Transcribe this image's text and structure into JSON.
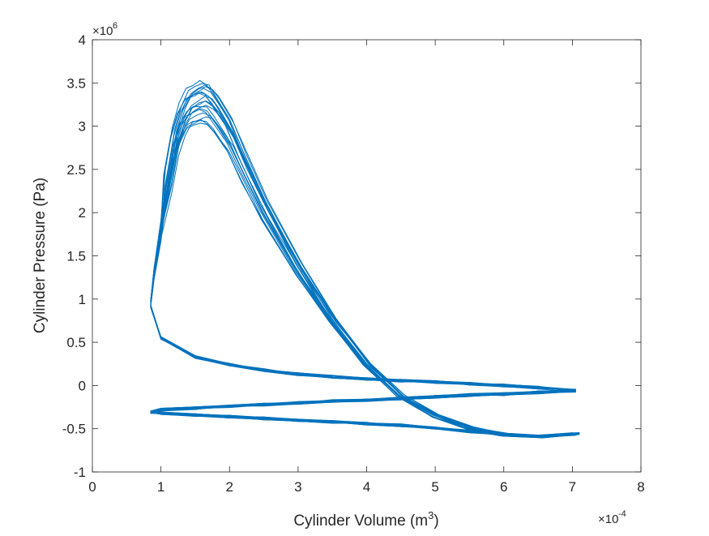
{
  "chart_data": {
    "type": "line",
    "title": "",
    "xlabel": "Cylinder Volume (m",
    "xlabel_superscript": "3",
    "xlabel_suffix": ")",
    "ylabel": "Cylinder Pressure (Pa)",
    "x_multiplier": {
      "base": "×10",
      "exponent": "-4"
    },
    "y_multiplier": {
      "base": "×10",
      "exponent": "6"
    },
    "xlim": [
      0,
      8
    ],
    "ylim": [
      -1,
      4
    ],
    "xticks": [
      0,
      1,
      2,
      3,
      4,
      5,
      6,
      7,
      8
    ],
    "xtick_labels": [
      "0",
      "1",
      "2",
      "3",
      "4",
      "5",
      "6",
      "7",
      "8"
    ],
    "yticks": [
      -1,
      -0.5,
      0,
      0.5,
      1,
      1.5,
      2,
      2.5,
      3,
      3.5,
      4
    ],
    "ytick_labels": [
      "-1",
      "-0.5",
      "0",
      "0.5",
      "1",
      "1.5",
      "2",
      "2.5",
      "3",
      "3.5",
      "4"
    ],
    "grid": false,
    "box": true,
    "series_color": "#0072BD",
    "cycle_count": 20,
    "series": [
      {
        "segment": "compression",
        "x": [
          0.85,
          1.0,
          1.5,
          2.0,
          2.5,
          3.0,
          3.5,
          4.0,
          4.5,
          5.0,
          5.5,
          6.0,
          6.5,
          7.05
        ],
        "y": [
          0.92,
          0.55,
          0.33,
          0.24,
          0.18,
          0.13,
          0.1,
          0.075,
          0.055,
          0.04,
          0.02,
          0.0,
          -0.025,
          -0.06
        ]
      },
      {
        "segment": "combustion-expansion",
        "x": [
          0.85,
          0.9,
          1.0,
          1.1,
          1.2,
          1.3,
          1.4,
          1.5,
          1.6,
          1.7,
          1.8,
          2.0,
          2.2,
          2.5,
          3.0,
          3.5,
          4.0,
          4.5,
          5.0,
          5.5,
          6.0,
          6.5,
          7.05
        ],
        "y": [
          0.95,
          1.3,
          1.8,
          2.35,
          2.8,
          3.05,
          3.2,
          3.25,
          3.28,
          3.25,
          3.15,
          2.9,
          2.55,
          2.05,
          1.35,
          0.75,
          0.25,
          -0.12,
          -0.35,
          -0.49,
          -0.57,
          -0.59,
          -0.56
        ]
      },
      {
        "segment": "exhaust",
        "x": [
          7.05,
          6.5,
          6.0,
          5.5,
          5.0,
          4.5,
          4.0,
          3.5,
          3.0,
          2.5,
          2.0,
          1.5,
          1.0,
          0.85
        ],
        "y": [
          -0.56,
          -0.59,
          -0.57,
          -0.53,
          -0.49,
          -0.46,
          -0.44,
          -0.42,
          -0.4,
          -0.38,
          -0.36,
          -0.34,
          -0.32,
          -0.31
        ]
      },
      {
        "segment": "intake",
        "x": [
          0.85,
          1.0,
          1.5,
          2.0,
          2.5,
          3.0,
          3.5,
          4.0,
          4.5,
          5.0,
          5.5,
          6.0,
          6.5,
          7.05
        ],
        "y": [
          -0.31,
          -0.28,
          -0.26,
          -0.24,
          -0.22,
          -0.2,
          -0.18,
          -0.17,
          -0.15,
          -0.13,
          -0.11,
          -0.1,
          -0.08,
          -0.06
        ]
      }
    ]
  }
}
